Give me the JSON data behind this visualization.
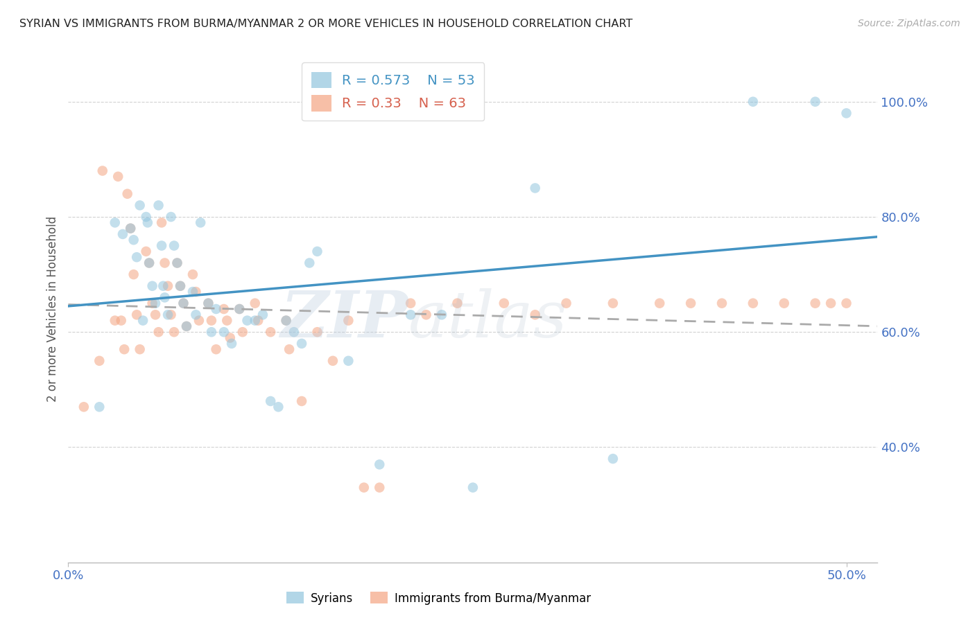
{
  "title": "SYRIAN VS IMMIGRANTS FROM BURMA/MYANMAR 2 OR MORE VEHICLES IN HOUSEHOLD CORRELATION CHART",
  "source": "Source: ZipAtlas.com",
  "ylabel": "2 or more Vehicles in Household",
  "xlim": [
    0.0,
    0.52
  ],
  "ylim": [
    0.2,
    1.08
  ],
  "xticks": [
    0.0,
    0.5
  ],
  "yticks": [
    0.4,
    0.6,
    0.8,
    1.0
  ],
  "ytick_labels": [
    "40.0%",
    "60.0%",
    "80.0%",
    "100.0%"
  ],
  "xtick_labels": [
    "0.0%",
    "50.0%"
  ],
  "blue_R": 0.573,
  "blue_N": 53,
  "pink_R": 0.33,
  "pink_N": 63,
  "blue_color": "#92c5de",
  "pink_color": "#f4a582",
  "blue_line_color": "#4393c3",
  "pink_line_color": "#d6604d",
  "pink_line_dash_color": "#aaaaaa",
  "watermark_zip": "ZIP",
  "watermark_atlas": "atlas",
  "blue_scatter_x": [
    0.02,
    0.03,
    0.035,
    0.04,
    0.042,
    0.044,
    0.046,
    0.048,
    0.05,
    0.051,
    0.052,
    0.054,
    0.056,
    0.058,
    0.06,
    0.061,
    0.062,
    0.064,
    0.066,
    0.068,
    0.07,
    0.072,
    0.074,
    0.076,
    0.08,
    0.082,
    0.085,
    0.09,
    0.092,
    0.095,
    0.1,
    0.105,
    0.11,
    0.115,
    0.12,
    0.125,
    0.13,
    0.135,
    0.14,
    0.145,
    0.15,
    0.155,
    0.16,
    0.18,
    0.2,
    0.22,
    0.24,
    0.26,
    0.3,
    0.35,
    0.44,
    0.48,
    0.5
  ],
  "blue_scatter_y": [
    0.47,
    0.79,
    0.77,
    0.78,
    0.76,
    0.73,
    0.82,
    0.62,
    0.8,
    0.79,
    0.72,
    0.68,
    0.65,
    0.82,
    0.75,
    0.68,
    0.66,
    0.63,
    0.8,
    0.75,
    0.72,
    0.68,
    0.65,
    0.61,
    0.67,
    0.63,
    0.79,
    0.65,
    0.6,
    0.64,
    0.6,
    0.58,
    0.64,
    0.62,
    0.62,
    0.63,
    0.48,
    0.47,
    0.62,
    0.6,
    0.58,
    0.72,
    0.74,
    0.55,
    0.37,
    0.63,
    0.63,
    0.33,
    0.85,
    0.38,
    1.0,
    1.0,
    0.98
  ],
  "pink_scatter_x": [
    0.01,
    0.02,
    0.022,
    0.03,
    0.032,
    0.034,
    0.036,
    0.038,
    0.04,
    0.042,
    0.044,
    0.046,
    0.05,
    0.052,
    0.054,
    0.056,
    0.058,
    0.06,
    0.062,
    0.064,
    0.066,
    0.068,
    0.07,
    0.072,
    0.074,
    0.076,
    0.08,
    0.082,
    0.084,
    0.09,
    0.092,
    0.095,
    0.1,
    0.102,
    0.104,
    0.11,
    0.112,
    0.12,
    0.122,
    0.13,
    0.14,
    0.142,
    0.15,
    0.16,
    0.17,
    0.18,
    0.19,
    0.2,
    0.22,
    0.23,
    0.25,
    0.28,
    0.3,
    0.32,
    0.35,
    0.38,
    0.4,
    0.42,
    0.44,
    0.46,
    0.48,
    0.49,
    0.5
  ],
  "pink_scatter_y": [
    0.47,
    0.55,
    0.88,
    0.62,
    0.87,
    0.62,
    0.57,
    0.84,
    0.78,
    0.7,
    0.63,
    0.57,
    0.74,
    0.72,
    0.65,
    0.63,
    0.6,
    0.79,
    0.72,
    0.68,
    0.63,
    0.6,
    0.72,
    0.68,
    0.65,
    0.61,
    0.7,
    0.67,
    0.62,
    0.65,
    0.62,
    0.57,
    0.64,
    0.62,
    0.59,
    0.64,
    0.6,
    0.65,
    0.62,
    0.6,
    0.62,
    0.57,
    0.48,
    0.6,
    0.55,
    0.62,
    0.33,
    0.33,
    0.65,
    0.63,
    0.65,
    0.65,
    0.63,
    0.65,
    0.65,
    0.65,
    0.65,
    0.65,
    0.65,
    0.65,
    0.65,
    0.65,
    0.65
  ]
}
